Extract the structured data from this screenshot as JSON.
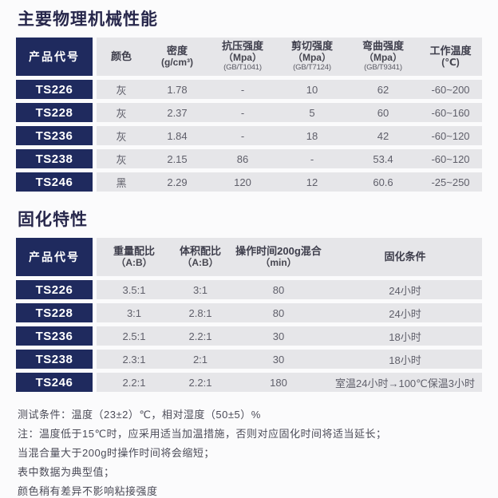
{
  "colors": {
    "navy": "#1f2a5e",
    "band_gray": "#e6e6e9",
    "title_text": "#27274b",
    "code_text": "#ffffff",
    "background": "#fbfbfc"
  },
  "section_mechanical": {
    "title": "主要物理机械性能",
    "corner_header": "产品代号",
    "columns": [
      {
        "name": "颜色",
        "unit": "",
        "standard": ""
      },
      {
        "name": "密度",
        "unit": "(g/cm³)",
        "standard": ""
      },
      {
        "name": "抗压强度",
        "unit": "（Mpa）",
        "standard": "(GB/T1041)"
      },
      {
        "name": "剪切强度",
        "unit": "（Mpa）",
        "standard": "(GB/T7124)"
      },
      {
        "name": "弯曲强度",
        "unit": "（Mpa）",
        "standard": "(GB/T9341)"
      },
      {
        "name": "工作温度",
        "unit": "(℃)",
        "standard": ""
      }
    ],
    "rows": [
      {
        "code": "TS226",
        "cells": [
          "灰",
          "1.78",
          "-",
          "10",
          "62",
          "-60~200"
        ]
      },
      {
        "code": "TS228",
        "cells": [
          "灰",
          "2.37",
          "-",
          "5",
          "60",
          "-60~160"
        ]
      },
      {
        "code": "TS236",
        "cells": [
          "灰",
          "1.84",
          "-",
          "18",
          "42",
          "-60~120"
        ]
      },
      {
        "code": "TS238",
        "cells": [
          "灰",
          "2.15",
          "86",
          "-",
          "53.4",
          "-60~120"
        ]
      },
      {
        "code": "TS246",
        "cells": [
          "黑",
          "2.29",
          "120",
          "12",
          "60.6",
          "-25~250"
        ]
      }
    ]
  },
  "section_curing": {
    "title": "固化特性",
    "corner_header": "产品代号",
    "columns": [
      {
        "name": "重量配比",
        "unit": "（A:B）"
      },
      {
        "name": "体积配比",
        "unit": "（A:B）"
      },
      {
        "name": "操作时间200g混合",
        "unit": "（min）"
      },
      {
        "name": "固化条件",
        "unit": ""
      }
    ],
    "rows": [
      {
        "code": "TS226",
        "cells": [
          "3.5:1",
          "3:1",
          "80",
          "24小时"
        ]
      },
      {
        "code": "TS228",
        "cells": [
          "3:1",
          "2.8:1",
          "80",
          "24小时"
        ]
      },
      {
        "code": "TS236",
        "cells": [
          "2.5:1",
          "2.2:1",
          "30",
          "18小时"
        ]
      },
      {
        "code": "TS238",
        "cells": [
          "2.3:1",
          "2:1",
          "30",
          "18小时"
        ]
      },
      {
        "code": "TS246",
        "cells": [
          "2.2:1",
          "2.2:1",
          "180",
          "室温24小时→100℃保温3小时"
        ]
      }
    ]
  },
  "notes": [
    "测试条件：温度（23±2）℃，相对湿度（50±5）%",
    "注：温度低于15℃时，应采用适当加温措施，否则对应固化时间将适当延长；",
    "当混合量大于200g时操作时间将会缩短；",
    "表中数据为典型值；",
    "颜色稍有差异不影响粘接强度"
  ]
}
